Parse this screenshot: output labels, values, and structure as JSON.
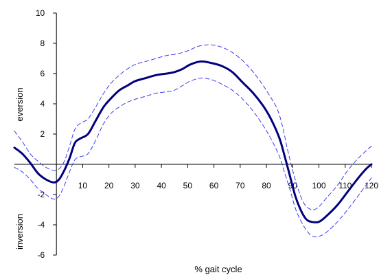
{
  "chart_data": {
    "type": "line",
    "xlabel": "% gait cycle",
    "ylabel_upper": "eversion",
    "ylabel_lower": "inversion",
    "xlim": [
      -16,
      120
    ],
    "ylim": [
      -6,
      10
    ],
    "x_ticks": [
      10,
      20,
      30,
      40,
      50,
      60,
      70,
      80,
      90,
      100,
      110,
      120
    ],
    "y_ticks": [
      -6,
      -4,
      -2,
      2,
      4,
      6,
      8,
      10
    ],
    "grid": false,
    "legend": "none",
    "series": [
      {
        "role": "mean",
        "style": "solid",
        "color": "#000080",
        "points": [
          [
            -16,
            1.1
          ],
          [
            -13,
            0.7
          ],
          [
            -10,
            0.1
          ],
          [
            -7,
            -0.6
          ],
          [
            -4,
            -1.0
          ],
          [
            -1,
            -1.2
          ],
          [
            1,
            -1.0
          ],
          [
            3,
            -0.4
          ],
          [
            5,
            0.4
          ],
          [
            7,
            1.4
          ],
          [
            9,
            1.7
          ],
          [
            12,
            2.0
          ],
          [
            15,
            2.9
          ],
          [
            18,
            3.8
          ],
          [
            21,
            4.4
          ],
          [
            24,
            4.9
          ],
          [
            27,
            5.2
          ],
          [
            30,
            5.5
          ],
          [
            34,
            5.7
          ],
          [
            38,
            5.9
          ],
          [
            42,
            6.0
          ],
          [
            45,
            6.1
          ],
          [
            48,
            6.3
          ],
          [
            51,
            6.6
          ],
          [
            55,
            6.8
          ],
          [
            59,
            6.7
          ],
          [
            63,
            6.5
          ],
          [
            67,
            6.1
          ],
          [
            71,
            5.4
          ],
          [
            75,
            4.7
          ],
          [
            79,
            3.8
          ],
          [
            82,
            2.9
          ],
          [
            85,
            1.7
          ],
          [
            87,
            0.5
          ],
          [
            89,
            -0.8
          ],
          [
            91,
            -2.1
          ],
          [
            93,
            -3.0
          ],
          [
            95,
            -3.6
          ],
          [
            97,
            -3.8
          ],
          [
            100,
            -3.8
          ],
          [
            103,
            -3.4
          ],
          [
            107,
            -2.7
          ],
          [
            111,
            -1.8
          ],
          [
            115,
            -0.9
          ],
          [
            118,
            -0.3
          ],
          [
            120,
            0.0
          ]
        ]
      },
      {
        "role": "upper-bound",
        "style": "dashed",
        "color": "#3b3bf0",
        "points": [
          [
            -16,
            2.2
          ],
          [
            -13,
            1.5
          ],
          [
            -10,
            0.7
          ],
          [
            -7,
            0.2
          ],
          [
            -4,
            -0.2
          ],
          [
            -1,
            -0.4
          ],
          [
            1,
            -0.3
          ],
          [
            3,
            0.2
          ],
          [
            5,
            1.2
          ],
          [
            7,
            2.3
          ],
          [
            9,
            2.7
          ],
          [
            12,
            3.0
          ],
          [
            15,
            3.8
          ],
          [
            18,
            4.7
          ],
          [
            21,
            5.4
          ],
          [
            24,
            5.9
          ],
          [
            27,
            6.3
          ],
          [
            30,
            6.6
          ],
          [
            34,
            6.8
          ],
          [
            38,
            7.0
          ],
          [
            42,
            7.2
          ],
          [
            46,
            7.3
          ],
          [
            50,
            7.5
          ],
          [
            54,
            7.8
          ],
          [
            58,
            7.9
          ],
          [
            62,
            7.8
          ],
          [
            66,
            7.5
          ],
          [
            70,
            7.0
          ],
          [
            74,
            6.3
          ],
          [
            78,
            5.4
          ],
          [
            81,
            4.6
          ],
          [
            84,
            3.7
          ],
          [
            86,
            2.6
          ],
          [
            88,
            1.0
          ],
          [
            90,
            -0.4
          ],
          [
            92,
            -1.6
          ],
          [
            94,
            -2.5
          ],
          [
            96,
            -2.9
          ],
          [
            98,
            -3.0
          ],
          [
            100,
            -2.8
          ],
          [
            103,
            -2.2
          ],
          [
            107,
            -1.4
          ],
          [
            111,
            -0.4
          ],
          [
            115,
            0.4
          ],
          [
            118,
            0.9
          ],
          [
            120,
            1.2
          ]
        ]
      },
      {
        "role": "lower-bound",
        "style": "dashed",
        "color": "#3b3bf0",
        "points": [
          [
            -16,
            -0.2
          ],
          [
            -13,
            -0.5
          ],
          [
            -10,
            -1.0
          ],
          [
            -7,
            -1.6
          ],
          [
            -4,
            -2.0
          ],
          [
            -1,
            -2.3
          ],
          [
            1,
            -2.1
          ],
          [
            3,
            -1.4
          ],
          [
            5,
            -0.5
          ],
          [
            7,
            0.3
          ],
          [
            9,
            0.5
          ],
          [
            12,
            0.7
          ],
          [
            15,
            1.6
          ],
          [
            18,
            2.7
          ],
          [
            21,
            3.4
          ],
          [
            24,
            3.8
          ],
          [
            27,
            4.1
          ],
          [
            30,
            4.3
          ],
          [
            34,
            4.5
          ],
          [
            38,
            4.7
          ],
          [
            42,
            4.8
          ],
          [
            45,
            4.9
          ],
          [
            48,
            5.2
          ],
          [
            51,
            5.5
          ],
          [
            55,
            5.7
          ],
          [
            59,
            5.6
          ],
          [
            63,
            5.3
          ],
          [
            67,
            4.9
          ],
          [
            71,
            4.3
          ],
          [
            75,
            3.5
          ],
          [
            79,
            2.5
          ],
          [
            82,
            1.6
          ],
          [
            85,
            0.5
          ],
          [
            87,
            -0.6
          ],
          [
            89,
            -1.7
          ],
          [
            91,
            -2.9
          ],
          [
            93,
            -3.7
          ],
          [
            95,
            -4.3
          ],
          [
            97,
            -4.7
          ],
          [
            99,
            -4.8
          ],
          [
            102,
            -4.6
          ],
          [
            106,
            -4.0
          ],
          [
            110,
            -3.2
          ],
          [
            114,
            -2.3
          ],
          [
            117,
            -1.6
          ],
          [
            120,
            -0.9
          ]
        ]
      }
    ]
  }
}
